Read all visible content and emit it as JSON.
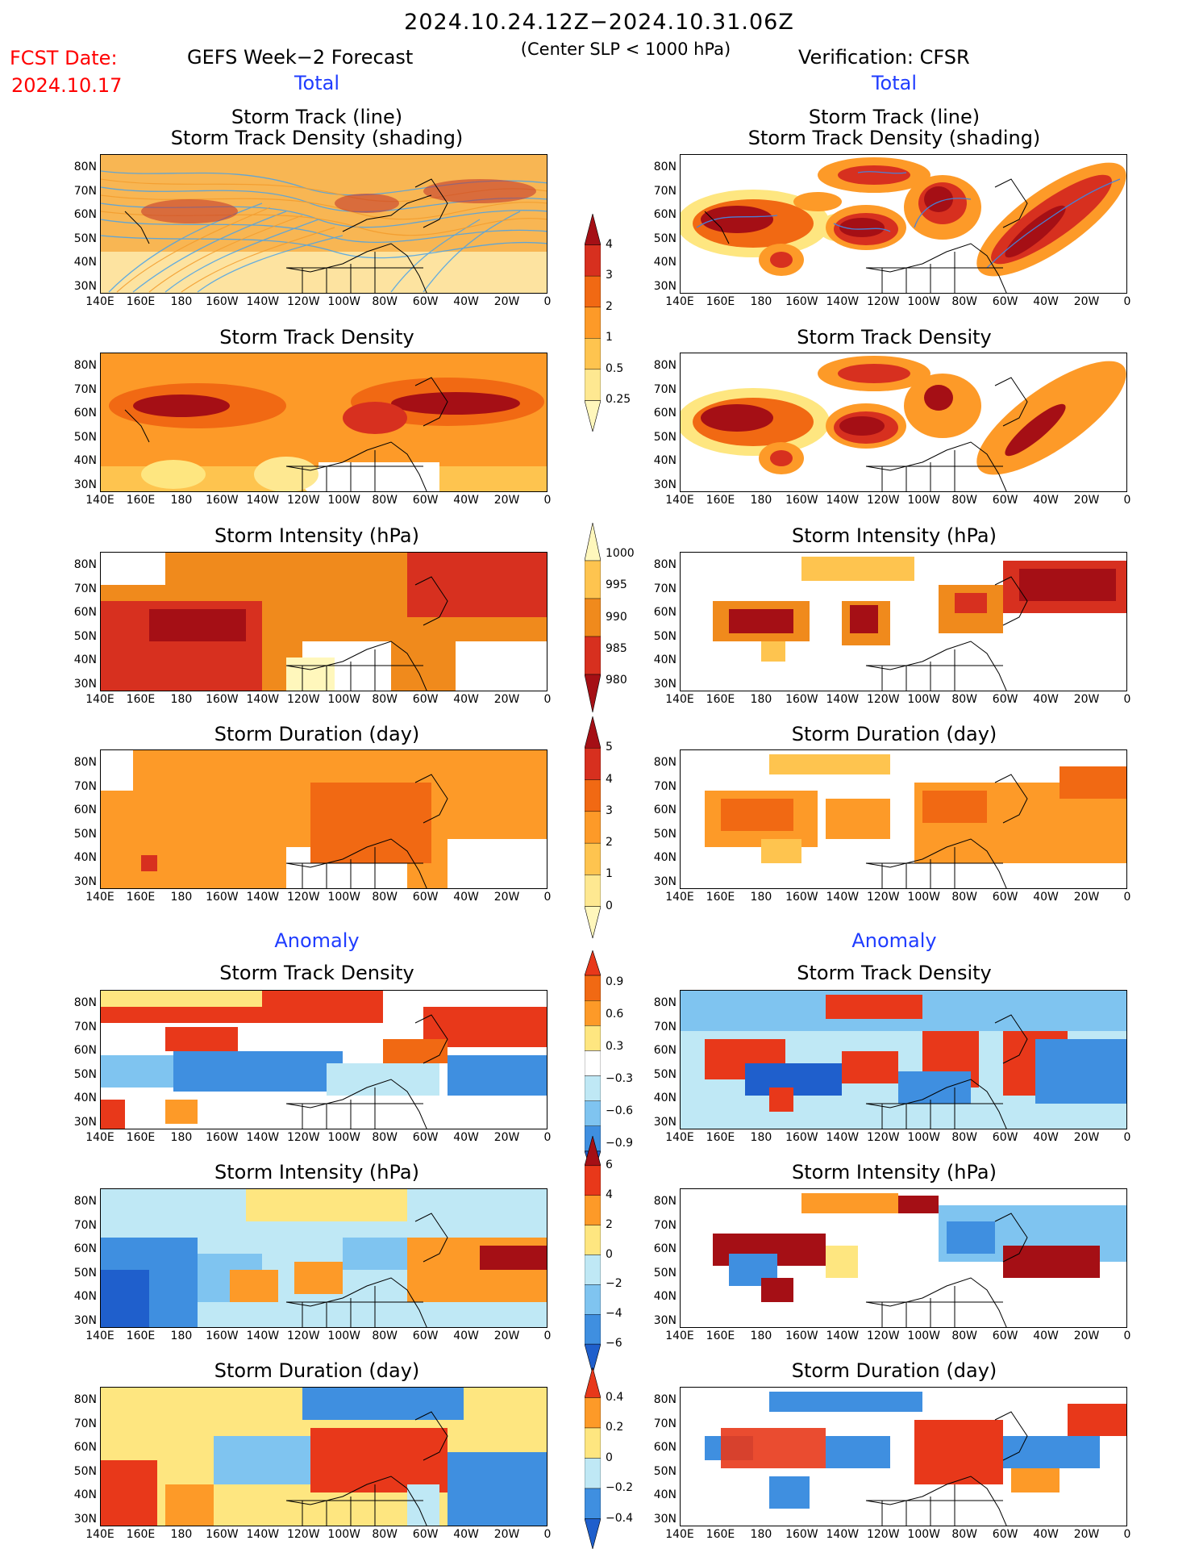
{
  "header": {
    "period": "2024.10.24.12Z−2024.10.31.06Z",
    "fcst_label": "FCST Date:",
    "fcst_date": "2024.10.17",
    "left_title": "GEFS Week−2 Forecast",
    "center_sub": "(Center SLP < 1000 hPa)",
    "right_title": "Verification: CFSR"
  },
  "sections": {
    "total": "Total",
    "anomaly": "Anomaly"
  },
  "panel_titles": {
    "track_line": "Storm Track (line)",
    "track_shading": "Storm Track Density (shading)",
    "density": "Storm Track Density",
    "intensity": "Storm Intensity (hPa)",
    "duration": "Storm Duration (day)"
  },
  "map_axes": {
    "lon_ticks": [
      "140E",
      "160E",
      "180",
      "160W",
      "140W",
      "120W",
      "100W",
      "80W",
      "60W",
      "40W",
      "20W",
      "0"
    ],
    "lat_ticks": [
      "80N",
      "70N",
      "60N",
      "50N",
      "40N",
      "30N"
    ]
  },
  "colorbars": {
    "total_density": {
      "labels": [
        "4",
        "3",
        "2",
        "1",
        "0.5",
        "0.25"
      ],
      "colors": [
        "#a50f15",
        "#d7301f",
        "#f16913",
        "#fd9a28",
        "#fec44f",
        "#fee891",
        "#fff7bc"
      ]
    },
    "total_intensity": {
      "labels": [
        "1000",
        "995",
        "990",
        "985",
        "980"
      ],
      "colors": [
        "#fff7bc",
        "#fec44f",
        "#f08a1c",
        "#d7301f",
        "#a50f15"
      ]
    },
    "total_duration": {
      "labels": [
        "5",
        "4",
        "3",
        "2",
        "1",
        "0"
      ],
      "colors": [
        "#a50f15",
        "#d7301f",
        "#f16913",
        "#fd9a28",
        "#fec44f",
        "#fee891",
        "#fff7bc"
      ]
    },
    "anom_density": {
      "labels": [
        "0.9",
        "0.6",
        "0.3",
        "−0.3",
        "−0.6",
        "−0.9"
      ],
      "colors": [
        "#e8381a",
        "#f16913",
        "#fd9a28",
        "#fee680",
        "#ffffff",
        "#bfe8f5",
        "#7fc4f0",
        "#3f8fe0",
        "#1f5fcc"
      ]
    },
    "anom_intensity": {
      "labels": [
        "6",
        "4",
        "2",
        "0",
        "−2",
        "−4",
        "−6"
      ],
      "colors": [
        "#a50f15",
        "#e8381a",
        "#fd9a28",
        "#fee680",
        "#bfe8f5",
        "#7fc4f0",
        "#3f8fe0",
        "#1f5fcc"
      ]
    },
    "anom_duration": {
      "labels": [
        "0.4",
        "0.2",
        "0",
        "−0.2",
        "−0.4"
      ],
      "colors": [
        "#e8381a",
        "#fd9a28",
        "#fee680",
        "#bfe8f5",
        "#3f8fe0",
        "#1f5fcc"
      ]
    }
  }
}
